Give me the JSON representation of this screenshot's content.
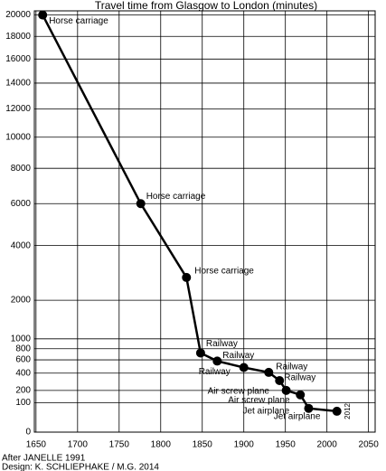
{
  "chart_data": {
    "type": "line",
    "title": "Travel time from Glasgow to London (minutes)",
    "x": [
      1658,
      1776,
      1831,
      1848,
      1868,
      1900,
      1930,
      1943,
      1951,
      1968,
      1978,
      2012
    ],
    "series": [
      {
        "color": "#000000",
        "values": [
          20000,
          6000,
          2750,
          720,
          580,
          480,
          410,
          305,
          200,
          160,
          65,
          50
        ]
      }
    ],
    "point_labels": [
      "Horse carriage",
      "Horse carriage",
      "Horse carriage",
      "Railway",
      "Railway",
      "Railway",
      "Railway",
      "Railway",
      "Air screw plane",
      "Air screw plane",
      "Jet airplane",
      "Jet airplane"
    ],
    "xlim": [
      1648,
      2058
    ],
    "xticks": [
      1650,
      1700,
      1750,
      1800,
      1850,
      1900,
      1950,
      2000,
      2050
    ],
    "ylim": [
      0,
      20400
    ],
    "yscale": "sqrt",
    "yticks": [
      0,
      100,
      200,
      400,
      600,
      800,
      1000,
      2000,
      4000,
      6000,
      8000,
      10000,
      12000,
      14000,
      16000,
      18000,
      20000
    ],
    "grid": true,
    "notes": [
      "After JANELLE 1991",
      "Design: K. SCHLIEPHAKE / M.G. 2014"
    ]
  }
}
